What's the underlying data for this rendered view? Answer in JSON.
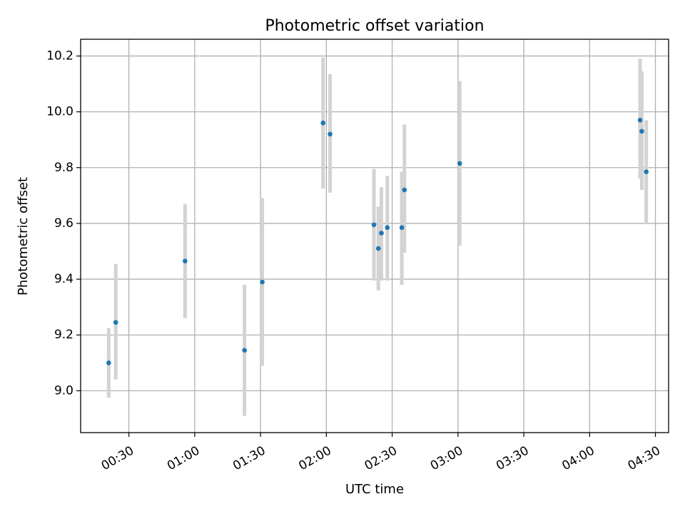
{
  "chart_data": {
    "type": "scatter",
    "title": "Photometric offset variation",
    "xlabel": "UTC time",
    "ylabel": "Photometric offset",
    "grid": true,
    "xlim_minutes": [
      8,
      276
    ],
    "ylim": [
      8.85,
      10.26
    ],
    "x_ticks": [
      {
        "minutes": 30,
        "label": "00:30"
      },
      {
        "minutes": 60,
        "label": "01:00"
      },
      {
        "minutes": 90,
        "label": "01:30"
      },
      {
        "minutes": 120,
        "label": "02:00"
      },
      {
        "minutes": 150,
        "label": "02:30"
      },
      {
        "minutes": 180,
        "label": "03:00"
      },
      {
        "minutes": 210,
        "label": "03:30"
      },
      {
        "minutes": 240,
        "label": "04:00"
      },
      {
        "minutes": 270,
        "label": "04:30"
      }
    ],
    "y_ticks": [
      {
        "value": 9.0,
        "label": "9.0"
      },
      {
        "value": 9.2,
        "label": "9.2"
      },
      {
        "value": 9.4,
        "label": "9.4"
      },
      {
        "value": 9.6,
        "label": "9.6"
      },
      {
        "value": 9.8,
        "label": "9.8"
      },
      {
        "value": 10.0,
        "label": "10.0"
      },
      {
        "value": 10.2,
        "label": "10.2"
      }
    ],
    "marker_color": "#1f77b4",
    "errorbar_color": "#d3d3d3",
    "points": [
      {
        "t": 20.8,
        "y": 9.1,
        "lo": 8.975,
        "hi": 9.225
      },
      {
        "t": 24.0,
        "y": 9.245,
        "lo": 9.04,
        "hi": 9.455
      },
      {
        "t": 55.6,
        "y": 9.465,
        "lo": 9.26,
        "hi": 9.67
      },
      {
        "t": 82.7,
        "y": 9.145,
        "lo": 8.91,
        "hi": 9.38
      },
      {
        "t": 90.8,
        "y": 9.39,
        "lo": 9.09,
        "hi": 9.69
      },
      {
        "t": 118.5,
        "y": 9.96,
        "lo": 9.725,
        "hi": 10.195
      },
      {
        "t": 121.7,
        "y": 9.92,
        "lo": 9.71,
        "hi": 10.135
      },
      {
        "t": 141.7,
        "y": 9.595,
        "lo": 9.395,
        "hi": 9.795
      },
      {
        "t": 143.7,
        "y": 9.51,
        "lo": 9.36,
        "hi": 9.66
      },
      {
        "t": 145.1,
        "y": 9.565,
        "lo": 9.395,
        "hi": 9.73
      },
      {
        "t": 147.8,
        "y": 9.585,
        "lo": 9.395,
        "hi": 9.77
      },
      {
        "t": 154.4,
        "y": 9.585,
        "lo": 9.38,
        "hi": 9.785
      },
      {
        "t": 155.6,
        "y": 9.72,
        "lo": 9.495,
        "hi": 9.955
      },
      {
        "t": 180.8,
        "y": 9.815,
        "lo": 9.52,
        "hi": 10.11
      },
      {
        "t": 263.0,
        "y": 9.97,
        "lo": 9.76,
        "hi": 10.19
      },
      {
        "t": 263.8,
        "y": 9.93,
        "lo": 9.72,
        "hi": 10.145
      },
      {
        "t": 265.8,
        "y": 9.785,
        "lo": 9.6,
        "hi": 9.97
      }
    ]
  }
}
